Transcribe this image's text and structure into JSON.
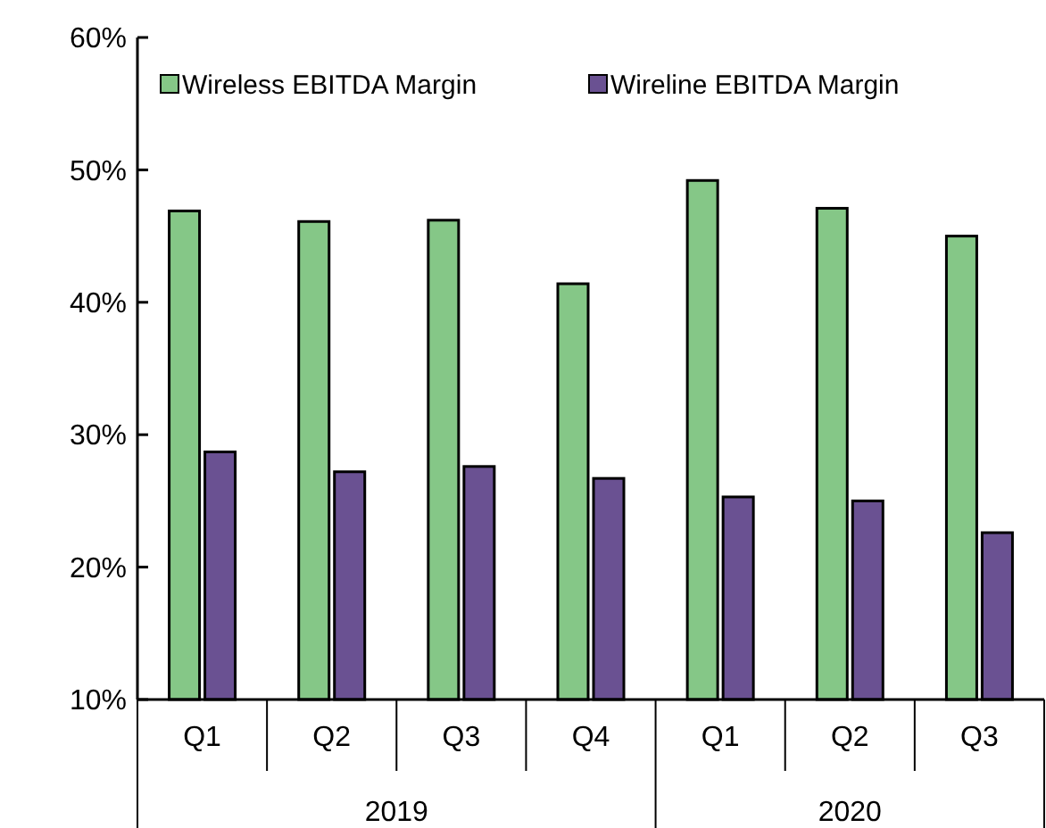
{
  "chart_data": {
    "type": "bar",
    "categories": [
      "Q1",
      "Q2",
      "Q3",
      "Q4",
      "Q1",
      "Q2",
      "Q3"
    ],
    "series": [
      {
        "name": "Wireless EBITDA Margin",
        "color": "#85c787",
        "values": [
          46.9,
          46.1,
          46.2,
          41.4,
          49.2,
          47.1,
          45.0
        ]
      },
      {
        "name": "Wireline EBITDA Margin",
        "color": "#6a5192",
        "values": [
          28.7,
          27.2,
          27.6,
          26.7,
          25.3,
          25.0,
          22.6
        ]
      }
    ],
    "ylim": [
      10,
      60
    ],
    "yticks": [
      {
        "value": 10,
        "label": "10%"
      },
      {
        "value": 20,
        "label": "20%"
      },
      {
        "value": 30,
        "label": "30%"
      },
      {
        "value": 40,
        "label": "40%"
      },
      {
        "value": 50,
        "label": "50%"
      },
      {
        "value": 60,
        "label": "60%"
      }
    ],
    "annotations": [
      "2019",
      "2020"
    ],
    "legend": "top",
    "grid": false
  }
}
